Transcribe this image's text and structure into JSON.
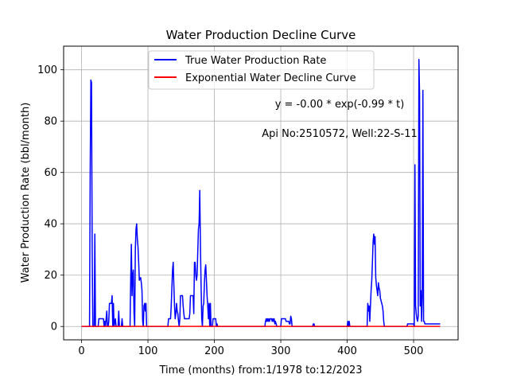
{
  "chart_data": {
    "type": "line",
    "title": "Water Production Decline Curve",
    "xlabel": "Time (months) from:1/1978 to:12/2023",
    "ylabel": "Water Production Rate (bbl/month)",
    "xlim": [
      -27,
      567
    ],
    "ylim": [
      -5.2,
      109.2
    ],
    "xticks": [
      0,
      100,
      200,
      300,
      400,
      500
    ],
    "yticks": [
      0,
      20,
      40,
      60,
      80,
      100
    ],
    "grid": true,
    "legend_position": "top-center",
    "colors": {
      "true_rate": "#0000ff",
      "decline": "#ff0000",
      "grid": "#b0b0b0"
    },
    "annotations": [
      "y = -0.00 * exp(-0.99 * t)",
      "Api No:2510572, Well:22-S-11"
    ],
    "series": [
      {
        "name": "True Water Production Rate",
        "color": "#0000ff",
        "points": [
          [
            0,
            0
          ],
          [
            12,
            0
          ],
          [
            13,
            60
          ],
          [
            14,
            96
          ],
          [
            15,
            95
          ],
          [
            16,
            30
          ],
          [
            17,
            0
          ],
          [
            19,
            0
          ],
          [
            20,
            36
          ],
          [
            21,
            0
          ],
          [
            25,
            0
          ],
          [
            26,
            3
          ],
          [
            33,
            3
          ],
          [
            34,
            0
          ],
          [
            35,
            2
          ],
          [
            36,
            0
          ],
          [
            38,
            6
          ],
          [
            39,
            0
          ],
          [
            40,
            0
          ],
          [
            41,
            2
          ],
          [
            42,
            9
          ],
          [
            45,
            9
          ],
          [
            46,
            12
          ],
          [
            47,
            0
          ],
          [
            48,
            9
          ],
          [
            49,
            0
          ],
          [
            51,
            3
          ],
          [
            52,
            0
          ],
          [
            55,
            0
          ],
          [
            56,
            6
          ],
          [
            57,
            0
          ],
          [
            60,
            0
          ],
          [
            61,
            3
          ],
          [
            62,
            0
          ],
          [
            68,
            0
          ],
          [
            69,
            0
          ],
          [
            70,
            0
          ],
          [
            71,
            0
          ],
          [
            73,
            0
          ],
          [
            74,
            18
          ],
          [
            75,
            32
          ],
          [
            76,
            12
          ],
          [
            77,
            20
          ],
          [
            78,
            22
          ],
          [
            79,
            5
          ],
          [
            80,
            0
          ],
          [
            81,
            30
          ],
          [
            82,
            38
          ],
          [
            83,
            40
          ],
          [
            84,
            34
          ],
          [
            85,
            31
          ],
          [
            86,
            25
          ],
          [
            87,
            18
          ],
          [
            88,
            19
          ],
          [
            89,
            19
          ],
          [
            90,
            17
          ],
          [
            91,
            14
          ],
          [
            92,
            2
          ],
          [
            93,
            0
          ],
          [
            94,
            8
          ],
          [
            95,
            9
          ],
          [
            96,
            6
          ],
          [
            97,
            9
          ],
          [
            98,
            0
          ],
          [
            100,
            0
          ],
          [
            101,
            0
          ],
          [
            108,
            0
          ],
          [
            109,
            0
          ],
          [
            110,
            0
          ],
          [
            120,
            0
          ],
          [
            130,
            0
          ],
          [
            131,
            3
          ],
          [
            134,
            3
          ],
          [
            135,
            8
          ],
          [
            136,
            15
          ],
          [
            137,
            22
          ],
          [
            138,
            25
          ],
          [
            139,
            16
          ],
          [
            140,
            8
          ],
          [
            141,
            3
          ],
          [
            142,
            5
          ],
          [
            143,
            9
          ],
          [
            144,
            6
          ],
          [
            145,
            5
          ],
          [
            146,
            2
          ],
          [
            147,
            0
          ],
          [
            148,
            3
          ],
          [
            149,
            12
          ],
          [
            152,
            12
          ],
          [
            153,
            8
          ],
          [
            154,
            5
          ],
          [
            155,
            3
          ],
          [
            156,
            3
          ],
          [
            157,
            3
          ],
          [
            158,
            3
          ],
          [
            159,
            3
          ],
          [
            160,
            3
          ],
          [
            161,
            3
          ],
          [
            162,
            3
          ],
          [
            163,
            5
          ],
          [
            164,
            12
          ],
          [
            165,
            12
          ],
          [
            166,
            12
          ],
          [
            167,
            12
          ],
          [
            168,
            12
          ],
          [
            169,
            5
          ],
          [
            170,
            25
          ],
          [
            171,
            25
          ],
          [
            172,
            20
          ],
          [
            173,
            18
          ],
          [
            174,
            20
          ],
          [
            175,
            29
          ],
          [
            176,
            38
          ],
          [
            177,
            40
          ],
          [
            178,
            53
          ],
          [
            179,
            32
          ],
          [
            180,
            16
          ],
          [
            181,
            3
          ],
          [
            182,
            0
          ],
          [
            183,
            8
          ],
          [
            184,
            9
          ],
          [
            185,
            17
          ],
          [
            186,
            22
          ],
          [
            187,
            24
          ],
          [
            188,
            18
          ],
          [
            189,
            12
          ],
          [
            190,
            8
          ],
          [
            191,
            3
          ],
          [
            192,
            9
          ],
          [
            193,
            0
          ],
          [
            194,
            9
          ],
          [
            195,
            0
          ],
          [
            196,
            0
          ],
          [
            197,
            0
          ],
          [
            198,
            3
          ],
          [
            199,
            3
          ],
          [
            200,
            3
          ],
          [
            201,
            3
          ],
          [
            202,
            3
          ],
          [
            203,
            0
          ],
          [
            204,
            1
          ],
          [
            205,
            0
          ],
          [
            230,
            0
          ],
          [
            276,
            0
          ],
          [
            277,
            2
          ],
          [
            278,
            3
          ],
          [
            279,
            2
          ],
          [
            280,
            3
          ],
          [
            281,
            2
          ],
          [
            282,
            3
          ],
          [
            283,
            2
          ],
          [
            284,
            3
          ],
          [
            285,
            3
          ],
          [
            286,
            3
          ],
          [
            287,
            2
          ],
          [
            288,
            3
          ],
          [
            289,
            2
          ],
          [
            290,
            3
          ],
          [
            291,
            1
          ],
          [
            292,
            2
          ],
          [
            293,
            1
          ],
          [
            294,
            0
          ],
          [
            300,
            0
          ],
          [
            301,
            3
          ],
          [
            302,
            3
          ],
          [
            303,
            3
          ],
          [
            304,
            3
          ],
          [
            305,
            3
          ],
          [
            306,
            3
          ],
          [
            307,
            3
          ],
          [
            308,
            2
          ],
          [
            309,
            2
          ],
          [
            310,
            2
          ],
          [
            311,
            2
          ],
          [
            312,
            2
          ],
          [
            313,
            1
          ],
          [
            314,
            1
          ],
          [
            315,
            4
          ],
          [
            316,
            3
          ],
          [
            317,
            0
          ],
          [
            320,
            0
          ],
          [
            348,
            0
          ],
          [
            349,
            1
          ],
          [
            350,
            1
          ],
          [
            351,
            0
          ],
          [
            360,
            0
          ],
          [
            398,
            0
          ],
          [
            400,
            0
          ],
          [
            401,
            2
          ],
          [
            402,
            0
          ],
          [
            403,
            2
          ],
          [
            404,
            0
          ],
          [
            430,
            0
          ],
          [
            431,
            9
          ],
          [
            432,
            6
          ],
          [
            433,
            8
          ],
          [
            434,
            2
          ],
          [
            435,
            8
          ],
          [
            436,
            14
          ],
          [
            437,
            18
          ],
          [
            438,
            25
          ],
          [
            439,
            33
          ],
          [
            440,
            36
          ],
          [
            441,
            32
          ],
          [
            442,
            35
          ],
          [
            443,
            19
          ],
          [
            444,
            16
          ],
          [
            445,
            14
          ],
          [
            446,
            12
          ],
          [
            447,
            17
          ],
          [
            448,
            15
          ],
          [
            449,
            14
          ],
          [
            450,
            11
          ],
          [
            451,
            10
          ],
          [
            452,
            9
          ],
          [
            453,
            8
          ],
          [
            454,
            6
          ],
          [
            455,
            2
          ],
          [
            456,
            0
          ],
          [
            457,
            0
          ],
          [
            470,
            0
          ],
          [
            490,
            0
          ],
          [
            491,
            1
          ],
          [
            499,
            1
          ],
          [
            500,
            1
          ],
          [
            501,
            0
          ],
          [
            502,
            63
          ],
          [
            503,
            8
          ],
          [
            504,
            5
          ],
          [
            505,
            3
          ],
          [
            506,
            2
          ],
          [
            507,
            4
          ],
          [
            508,
            104
          ],
          [
            509,
            90
          ],
          [
            510,
            8
          ],
          [
            511,
            14
          ],
          [
            512,
            2
          ],
          [
            513,
            12
          ],
          [
            514,
            92
          ],
          [
            515,
            2
          ],
          [
            516,
            2
          ],
          [
            517,
            1
          ],
          [
            518,
            1
          ],
          [
            519,
            1
          ],
          [
            520,
            1
          ],
          [
            525,
            1
          ],
          [
            530,
            1
          ],
          [
            540,
            1
          ]
        ]
      },
      {
        "name": "Exponential Water Decline Curve",
        "color": "#ff0000",
        "points": [
          [
            0,
            0.05
          ],
          [
            540,
            0.05
          ]
        ]
      }
    ]
  }
}
